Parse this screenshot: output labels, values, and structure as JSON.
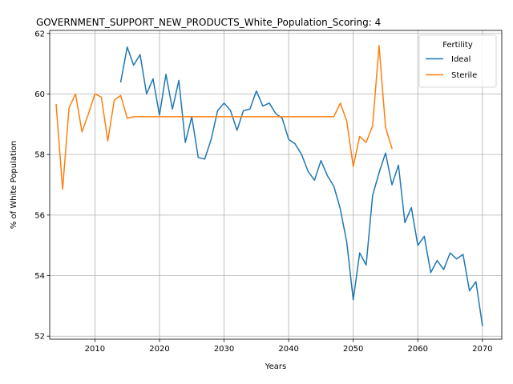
{
  "chart_data": {
    "type": "line",
    "title": "GOVERNMENT_SUPPORT_NEW_PRODUCTS_White_Population_Scoring: 4",
    "xlabel": "Years",
    "ylabel": "% of White Population",
    "xlim": [
      2003,
      2073
    ],
    "ylim": [
      51.9,
      62.1
    ],
    "x_ticks": [
      2010,
      2020,
      2030,
      2040,
      2050,
      2060,
      2070
    ],
    "y_ticks": [
      52,
      54,
      56,
      58,
      60,
      62
    ],
    "grid": true,
    "legend": {
      "title": "Fertility",
      "position": "top-right"
    },
    "series": [
      {
        "name": "Ideal",
        "color": "#1f77b4",
        "x": [
          2014,
          2015,
          2016,
          2017,
          2018,
          2019,
          2020,
          2021,
          2022,
          2023,
          2024,
          2025,
          2026,
          2027,
          2028,
          2029,
          2030,
          2031,
          2032,
          2033,
          2034,
          2035,
          2036,
          2037,
          2038,
          2039,
          2040,
          2041,
          2042,
          2043,
          2044,
          2045,
          2046,
          2047,
          2048,
          2049,
          2050,
          2051,
          2052,
          2053,
          2054,
          2055,
          2056,
          2057,
          2058,
          2059,
          2060,
          2061,
          2062,
          2063,
          2064,
          2065,
          2066,
          2067,
          2068,
          2069,
          2070
        ],
        "values": [
          60.4,
          61.55,
          60.95,
          61.3,
          60.0,
          60.5,
          59.3,
          60.65,
          59.5,
          60.45,
          58.4,
          59.25,
          57.9,
          57.85,
          58.5,
          59.45,
          59.7,
          59.45,
          58.8,
          59.45,
          59.5,
          60.1,
          59.6,
          59.7,
          59.35,
          59.2,
          58.5,
          58.35,
          58.0,
          57.45,
          57.15,
          57.8,
          57.3,
          56.95,
          56.2,
          55.1,
          53.2,
          54.75,
          54.35,
          56.65,
          57.4,
          58.05,
          57.0,
          57.65,
          55.75,
          56.25,
          55.0,
          55.3,
          54.1,
          54.5,
          54.2,
          54.75,
          54.55,
          54.7,
          53.5,
          53.8,
          52.35
        ]
      },
      {
        "name": "Sterile",
        "color": "#ff7f0e",
        "x": [
          2004,
          2005,
          2006,
          2007,
          2008,
          2009,
          2010,
          2011,
          2012,
          2013,
          2014,
          2015,
          2016,
          2017,
          2018,
          2019,
          2020,
          2021,
          2022,
          2023,
          2024,
          2025,
          2026,
          2027,
          2028,
          2029,
          2030,
          2031,
          2032,
          2033,
          2034,
          2035,
          2036,
          2037,
          2038,
          2039,
          2040,
          2041,
          2042,
          2043,
          2044,
          2045,
          2046,
          2047,
          2048,
          2049,
          2050,
          2051,
          2052,
          2053,
          2054,
          2055,
          2056
        ],
        "values": [
          59.65,
          56.85,
          59.55,
          60.0,
          58.75,
          59.35,
          60.0,
          59.9,
          58.45,
          59.8,
          59.95,
          59.2,
          59.25,
          59.25,
          59.25,
          59.25,
          59.25,
          59.25,
          59.25,
          59.25,
          59.25,
          59.25,
          59.25,
          59.25,
          59.25,
          59.25,
          59.25,
          59.25,
          59.25,
          59.25,
          59.25,
          59.25,
          59.25,
          59.25,
          59.25,
          59.25,
          59.25,
          59.25,
          59.25,
          59.25,
          59.25,
          59.25,
          59.25,
          59.25,
          59.7,
          59.1,
          57.6,
          58.6,
          58.4,
          58.95,
          61.6,
          58.9,
          58.2
        ]
      }
    ]
  }
}
